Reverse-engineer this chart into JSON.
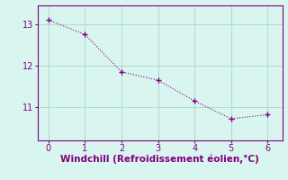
{
  "x": [
    0,
    1,
    2,
    3,
    4,
    5,
    6
  ],
  "y": [
    13.1,
    12.75,
    11.85,
    11.65,
    11.15,
    10.72,
    10.82
  ],
  "line_color": "#800080",
  "marker": "+",
  "marker_size": 4,
  "marker_linewidth": 1.0,
  "xlabel": "Windchill (Refroidissement éolien,°C)",
  "xlabel_color": "#800080",
  "xlabel_fontsize": 7.5,
  "yticks": [
    11,
    12,
    13
  ],
  "xticks": [
    0,
    1,
    2,
    3,
    4,
    5,
    6
  ],
  "ylim": [
    10.2,
    13.45
  ],
  "xlim": [
    -0.3,
    6.4
  ],
  "background_color": "#d8f5f0",
  "grid_color": "#aad4cc",
  "tick_color": "#800080",
  "tick_fontsize": 7,
  "spine_color": "#800080"
}
